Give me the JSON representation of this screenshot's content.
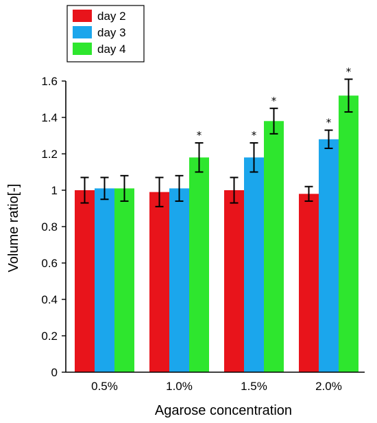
{
  "chart_data": {
    "type": "bar",
    "xlabel": "Agarose concentration",
    "ylabel": "Volume ratio[-]",
    "ylim": [
      0,
      1.6
    ],
    "yticks": [
      0,
      0.2,
      0.4,
      0.6,
      0.8,
      1,
      1.2,
      1.4,
      1.6
    ],
    "ytick_labels": [
      "0",
      "0.2",
      "0.4",
      "0.6",
      "0.8",
      "1",
      "1.2",
      "1.4",
      "1.6"
    ],
    "categories": [
      "0.5%",
      "1.0%",
      "1.5%",
      "2.0%"
    ],
    "legend_position": "top-left",
    "series": [
      {
        "name": "day 2",
        "color": "#e8141b",
        "values": [
          1.0,
          0.99,
          1.0,
          0.98
        ],
        "errors": [
          0.07,
          0.08,
          0.07,
          0.04
        ],
        "significant": [
          false,
          false,
          false,
          false
        ]
      },
      {
        "name": "day 3",
        "color": "#1ba6ec",
        "values": [
          1.01,
          1.01,
          1.18,
          1.28
        ],
        "errors": [
          0.06,
          0.07,
          0.08,
          0.05
        ],
        "significant": [
          false,
          false,
          true,
          true
        ]
      },
      {
        "name": "day 4",
        "color": "#2ee62e",
        "values": [
          1.01,
          1.18,
          1.38,
          1.52
        ],
        "errors": [
          0.07,
          0.08,
          0.07,
          0.09
        ],
        "significant": [
          false,
          true,
          true,
          true
        ]
      }
    ],
    "significance_marker": "*"
  }
}
